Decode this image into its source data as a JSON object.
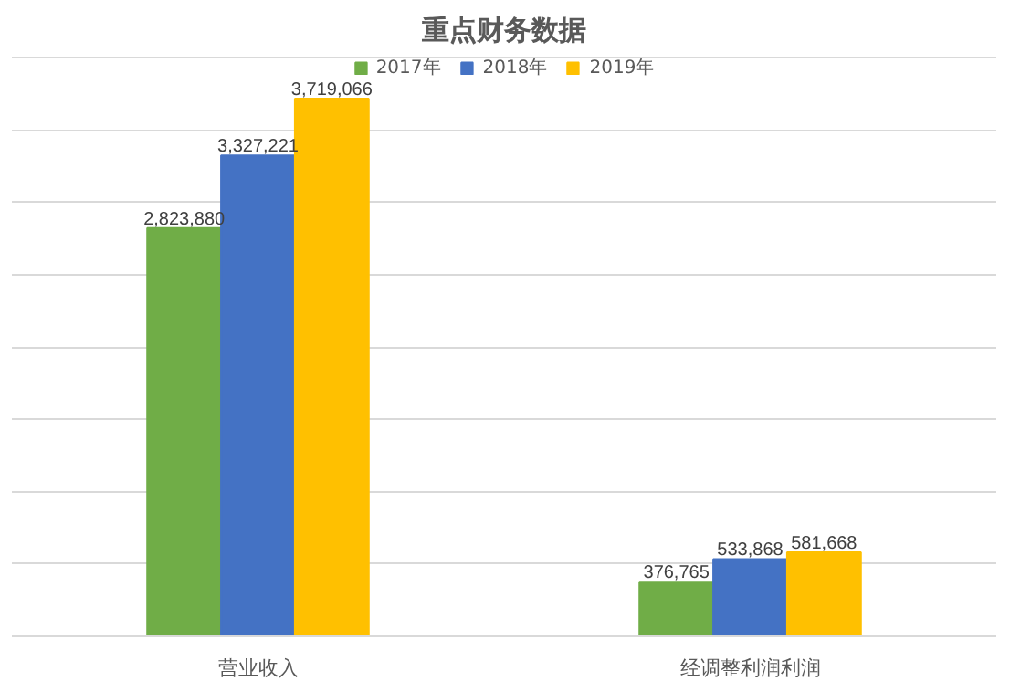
{
  "chart_data": {
    "type": "bar",
    "title": "重点财务数据",
    "categories": [
      "营业收入",
      "经调整利润利润"
    ],
    "series": [
      {
        "name": "2017年",
        "color": "#70ad47",
        "values": [
          2823880,
          376765
        ],
        "value_labels": [
          "2,823,880",
          "376,765"
        ]
      },
      {
        "name": "2018年",
        "color": "#4472c4",
        "values": [
          3327221,
          533868
        ],
        "value_labels": [
          "3,327,221",
          "533,868"
        ]
      },
      {
        "name": "2019年",
        "color": "#ffc000",
        "values": [
          3719066,
          581668
        ],
        "value_labels": [
          "3,719,066",
          "581,668"
        ]
      }
    ],
    "tick_labels": "x",
    "grid": "y",
    "legend": "top"
  }
}
